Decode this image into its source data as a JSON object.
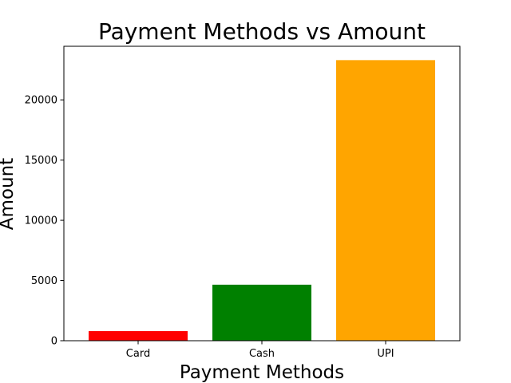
{
  "chart_data": {
    "type": "bar",
    "title": "Payment Methods vs Amount",
    "xlabel": "Payment Methods",
    "ylabel": "Amount",
    "categories": [
      "Card",
      "Cash",
      "UPI"
    ],
    "values": [
      800,
      4650,
      23300
    ],
    "colors": [
      "#ff0000",
      "#008000",
      "#ffa500"
    ],
    "ylim": [
      0,
      24450
    ],
    "yticks": [
      0,
      5000,
      10000,
      15000,
      20000
    ],
    "ytick_labels": [
      "0",
      "5000",
      "10000",
      "15000",
      "20000"
    ],
    "grid": false,
    "legend": "none"
  }
}
